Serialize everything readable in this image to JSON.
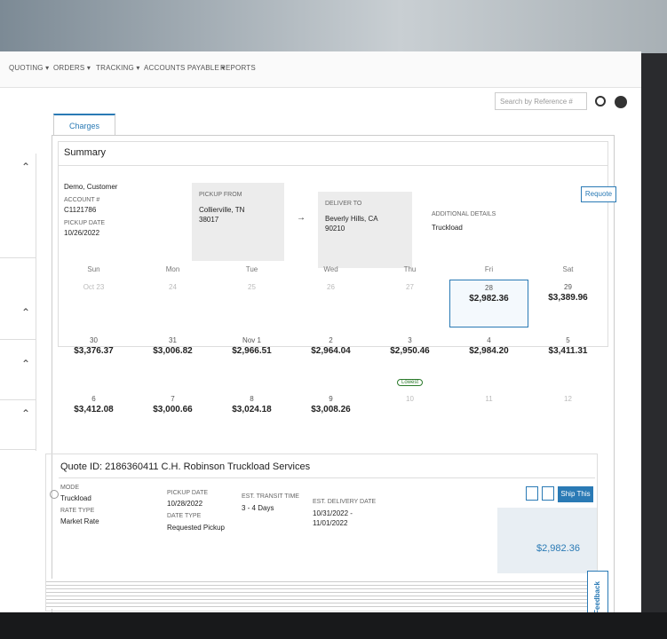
{
  "nav": [
    "QUOTING",
    "ORDERS",
    "TRACKING",
    "ACCOUNTS PAYABLE",
    "REPORTS"
  ],
  "search_placeholder": "Search by Reference #",
  "tab": "Charges",
  "summary": {
    "title": "Summary",
    "customer": "Demo, Customer",
    "account_label": "ACCOUNT #",
    "account": "C1121786",
    "pickup_date_label": "PICKUP DATE",
    "pickup_date": "10/26/2022",
    "pickup_from_label": "PICKUP FROM",
    "pickup_from_city": "Collierville, TN",
    "pickup_from_zip": "38017",
    "deliver_to_label": "DELIVER TO",
    "deliver_to_city": "Beverly Hills, CA",
    "deliver_to_zip": "90210",
    "additional_label": "ADDITIONAL DETAILS",
    "additional": "Truckload",
    "requote": "Requote"
  },
  "calendar": {
    "days": [
      "Sun",
      "Mon",
      "Tue",
      "Wed",
      "Thu",
      "Fri",
      "Sat"
    ],
    "weeks": [
      [
        {
          "date": "Oct 23"
        },
        {
          "date": "24"
        },
        {
          "date": "25"
        },
        {
          "date": "26"
        },
        {
          "date": "27"
        },
        {
          "date": "28",
          "price": "$2,982.36",
          "selected": true
        },
        {
          "date": "29",
          "price": "$3,389.96"
        }
      ],
      [
        {
          "date": "30",
          "price": "$3,376.37"
        },
        {
          "date": "31",
          "price": "$3,006.82"
        },
        {
          "date": "Nov 1",
          "price": "$2,966.51"
        },
        {
          "date": "2",
          "price": "$2,964.04"
        },
        {
          "date": "3",
          "price": "$2,950.46",
          "badge": "Lowest"
        },
        {
          "date": "4",
          "price": "$2,984.20"
        },
        {
          "date": "5",
          "price": "$3,411.31"
        }
      ],
      [
        {
          "date": "6",
          "price": "$3,412.08"
        },
        {
          "date": "7",
          "price": "$3,000.66"
        },
        {
          "date": "8",
          "price": "$3,024.18"
        },
        {
          "date": "9",
          "price": "$3,008.26"
        },
        {
          "date": "10"
        },
        {
          "date": "11"
        },
        {
          "date": "12"
        }
      ]
    ]
  },
  "quote": {
    "title": "Quote ID: 2186360411  C.H. Robinson Truckload Services",
    "mode_label": "MODE",
    "mode": "Truckload",
    "rate_type_label": "RATE TYPE",
    "rate_type": "Market Rate",
    "pickup_date_label": "PICKUP DATE",
    "pickup_date": "10/28/2022",
    "date_type_label": "DATE TYPE",
    "date_type": "Requested Pickup",
    "transit_label": "EST. TRANSIT TIME",
    "transit": "3 - 4 Days",
    "delivery_label": "EST. DELIVERY DATE",
    "delivery_start": "10/31/2022 -",
    "delivery_end": "11/01/2022",
    "ship_button": "Ship This",
    "price": "$2,982.36"
  },
  "feedback": "Feedback"
}
